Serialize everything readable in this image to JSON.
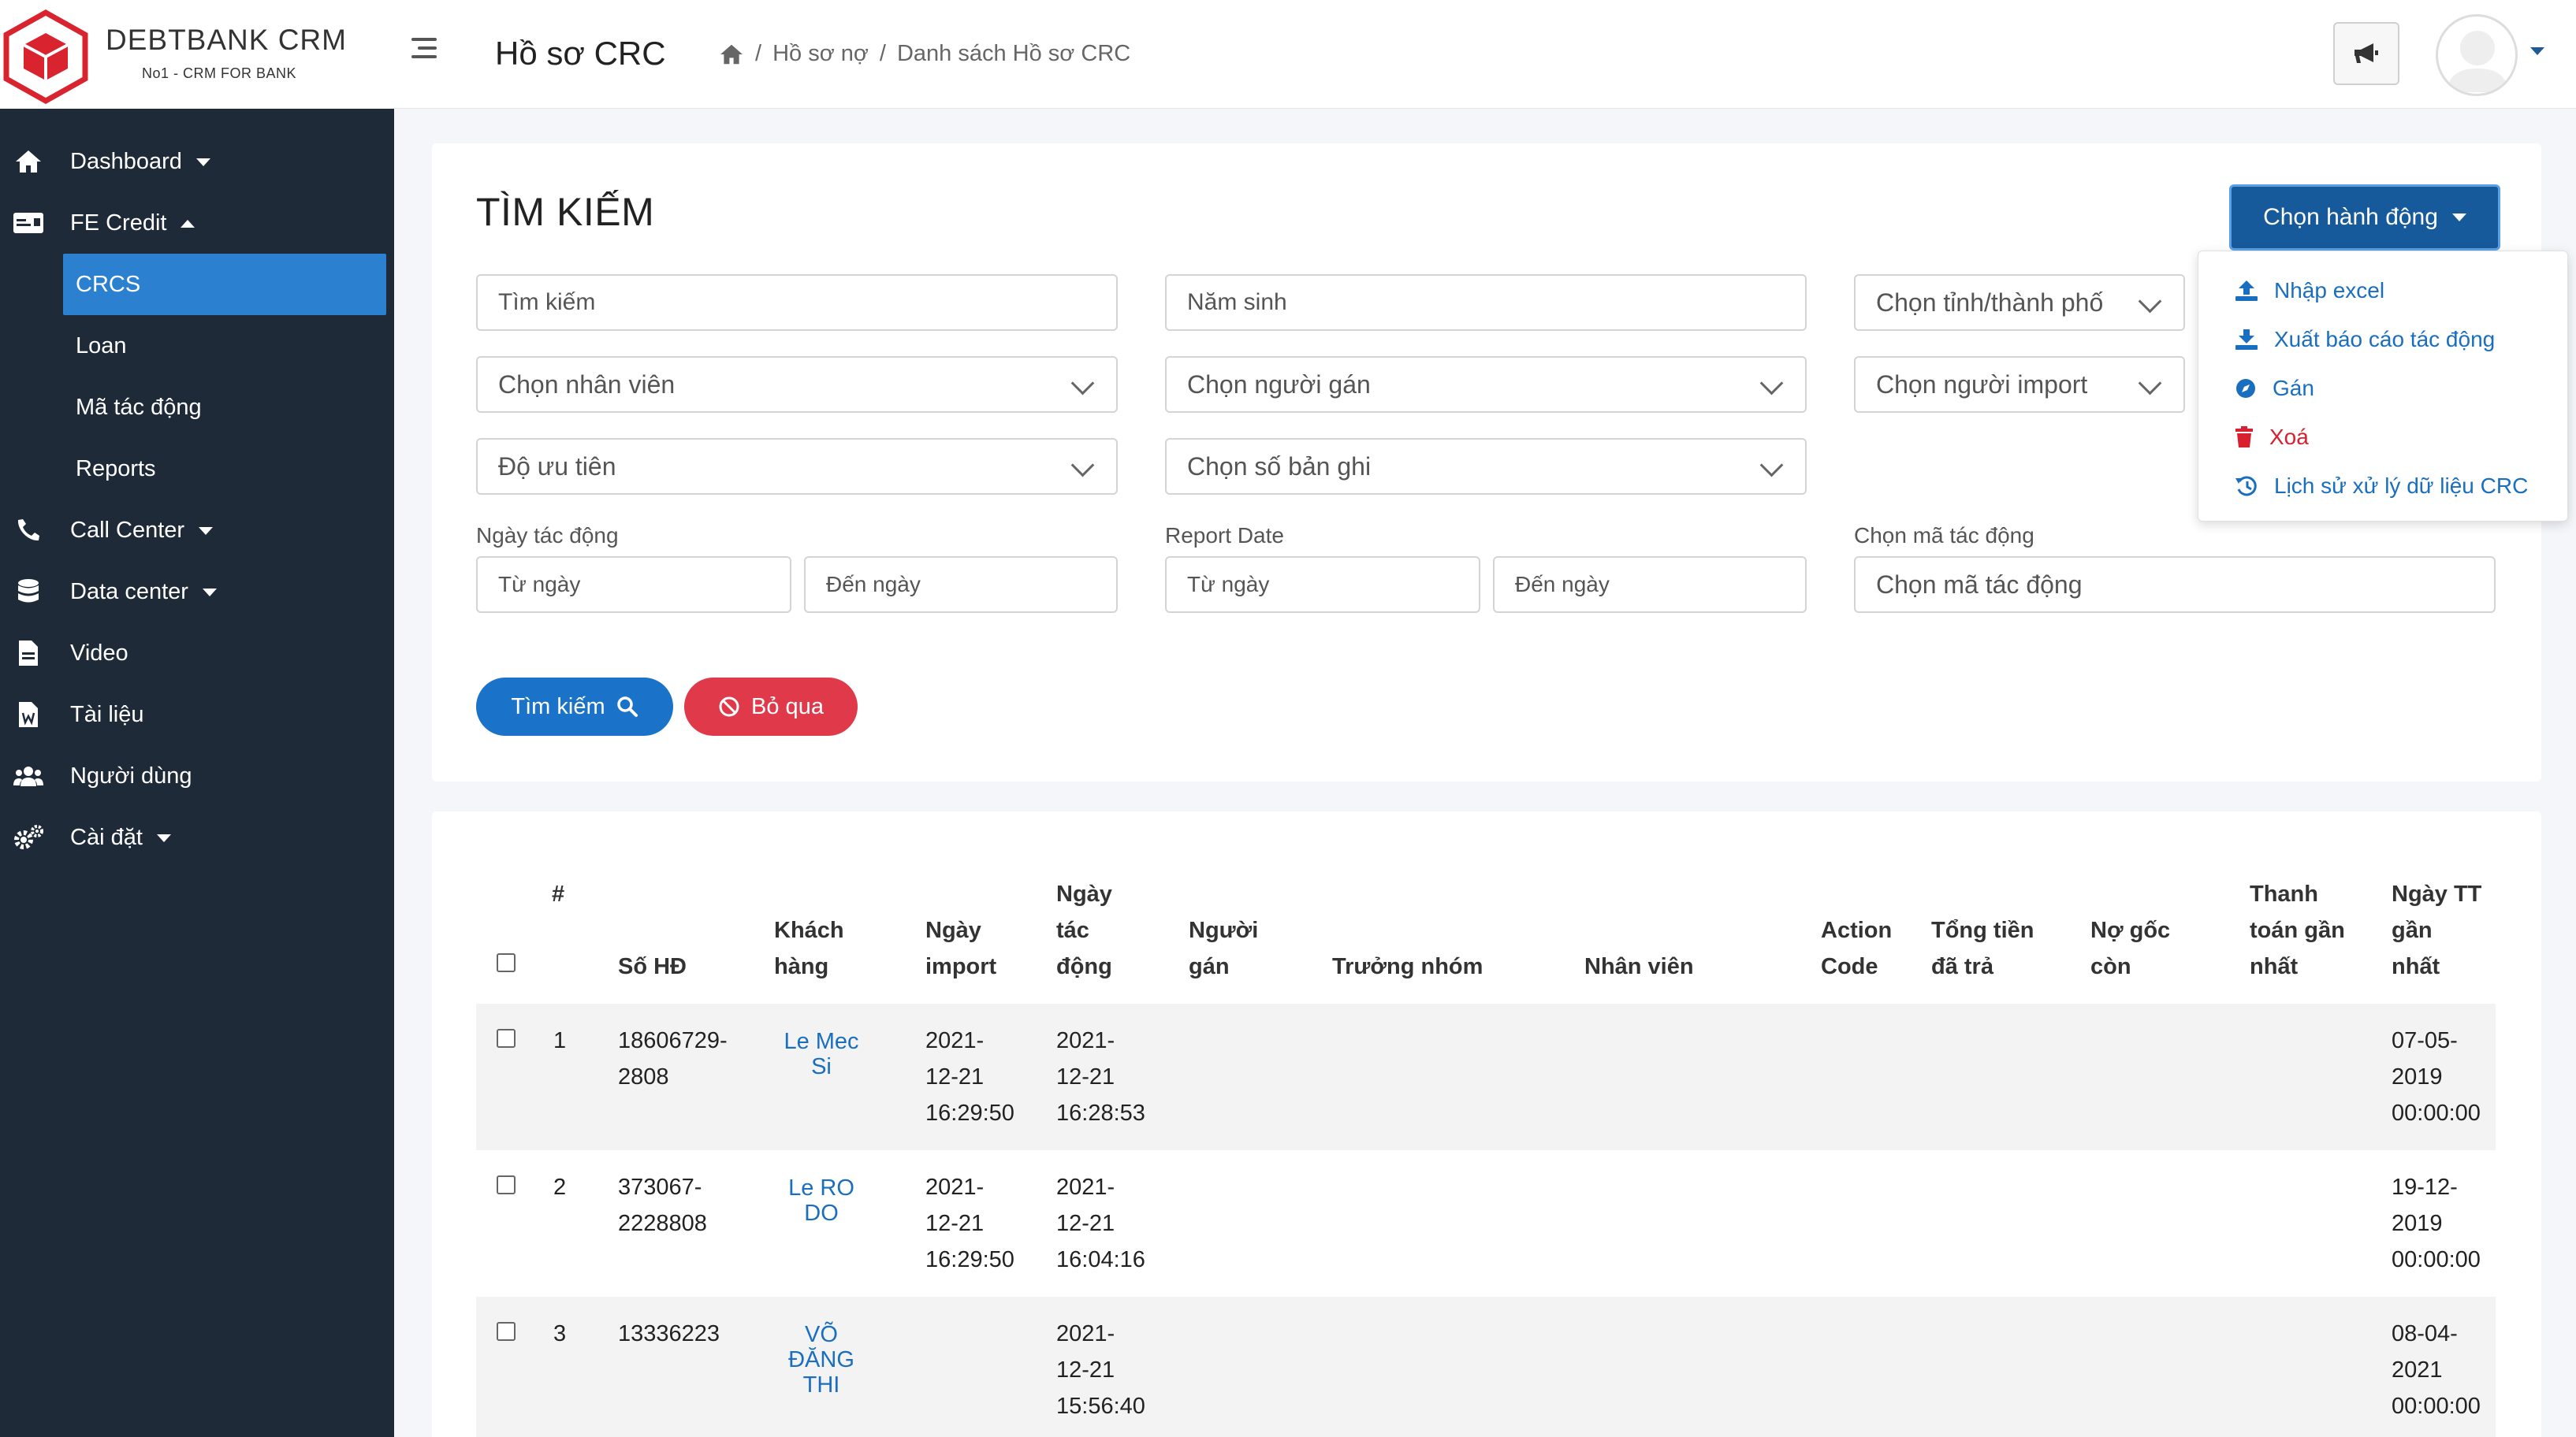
{
  "brand": {
    "title": "DEBTBANK CRM",
    "subtitle": "No1 - CRM FOR BANK",
    "logo_color": "#d9232e"
  },
  "sidebar": {
    "items": [
      {
        "label": "Dashboard",
        "icon": "home-icon"
      },
      {
        "label": "FE Credit",
        "icon": "credit-card-icon"
      },
      {
        "label": "CRCS"
      },
      {
        "label": "Loan"
      },
      {
        "label": "Mã tác động"
      },
      {
        "label": "Reports"
      },
      {
        "label": "Call Center",
        "icon": "phone-icon"
      },
      {
        "label": "Data center",
        "icon": "database-icon"
      },
      {
        "label": "Video",
        "icon": "file-icon"
      },
      {
        "label": "Tài liệu",
        "icon": "word-file-icon"
      },
      {
        "label": "Người dùng",
        "icon": "users-icon"
      },
      {
        "label": "Cài đặt",
        "icon": "cogs-icon"
      }
    ]
  },
  "header": {
    "title": "Hồ sơ CRC",
    "breadcrumb": [
      "Hồ sơ nợ",
      "Danh sách Hồ sơ CRC"
    ],
    "separator": "/"
  },
  "search": {
    "title": "TÌM KIẾM",
    "action_button": "Chọn hành động",
    "fields": {
      "keyword": "Tìm kiếm",
      "birth_year": "Năm sinh",
      "province": "Chọn tỉnh/thành phố",
      "employee": "Chọn nhân viên",
      "assigner": "Chọn người gán",
      "importer": "Chọn người import",
      "priority": "Độ ưu tiên",
      "record_count": "Chọn số bản ghi",
      "impact_date_label": "Ngày tác động",
      "report_date_label": "Report Date",
      "impact_code_label": "Chọn mã tác động",
      "from_date": "Từ ngày",
      "to_date": "Đến ngày",
      "impact_code": "Chọn mã tác động"
    },
    "search_button": "Tìm kiếm",
    "reset_button": "Bỏ qua"
  },
  "dropdown": {
    "items": [
      {
        "label": "Nhập excel",
        "icon": "upload-icon"
      },
      {
        "label": "Xuất báo cáo tác động",
        "icon": "download-icon"
      },
      {
        "label": "Gán",
        "icon": "compass-icon"
      },
      {
        "label": "Xoá",
        "icon": "trash-icon"
      },
      {
        "label": "Lịch sử xử lý dữ liệu CRC",
        "icon": "history-icon"
      }
    ]
  },
  "table": {
    "headers": {
      "index": "#",
      "contract": "Số HĐ",
      "customer": [
        "Khách",
        "hàng"
      ],
      "import_date": [
        "Ngày",
        "import"
      ],
      "impact_date": [
        "Ngày",
        "tác",
        "động"
      ],
      "assigner": [
        "Người",
        "gán"
      ],
      "team_lead": "Trưởng nhóm",
      "employee": "Nhân viên",
      "action_code": [
        "Action",
        "Code"
      ],
      "total_paid": [
        "Tổng tiền",
        "đã trả"
      ],
      "principal": [
        "Nợ gốc",
        "còn"
      ],
      "last_payment": [
        "Thanh",
        "toán gần",
        "nhất"
      ],
      "last_payment_date": [
        "Ngày TT",
        "gần",
        "nhất"
      ]
    },
    "rows": [
      {
        "index": "1",
        "contract": [
          "18606729-",
          "2808"
        ],
        "customer": [
          "Le Mec",
          "Si"
        ],
        "import_date": [
          "2021-",
          "12-21",
          "16:29:50"
        ],
        "impact_date": [
          "2021-",
          "12-21",
          "16:28:53"
        ],
        "last_payment_date": [
          "07-05-",
          "2019",
          "00:00:00"
        ]
      },
      {
        "index": "2",
        "contract": [
          "373067-",
          "2228808"
        ],
        "customer": [
          "Le RO",
          "DO"
        ],
        "import_date": [
          "2021-",
          "12-21",
          "16:29:50"
        ],
        "impact_date": [
          "2021-",
          "12-21",
          "16:04:16"
        ],
        "last_payment_date": [
          "19-12-",
          "2019",
          "00:00:00"
        ]
      },
      {
        "index": "3",
        "contract": [
          "13336223",
          ""
        ],
        "customer": [
          "VÕ",
          "ĐĂNG",
          "THI"
        ],
        "import_date": [
          "",
          "",
          ""
        ],
        "impact_date": [
          "2021-",
          "12-21",
          "15:56:40"
        ],
        "last_payment_date": [
          "08-04-",
          "2021",
          "00:00:00"
        ]
      }
    ]
  },
  "colors": {
    "sidebar_bg": "#1e2a38",
    "active": "#2b80d0",
    "primary": "#1a73c8",
    "danger": "#e03a4a",
    "action_btn": "#175a9c"
  }
}
